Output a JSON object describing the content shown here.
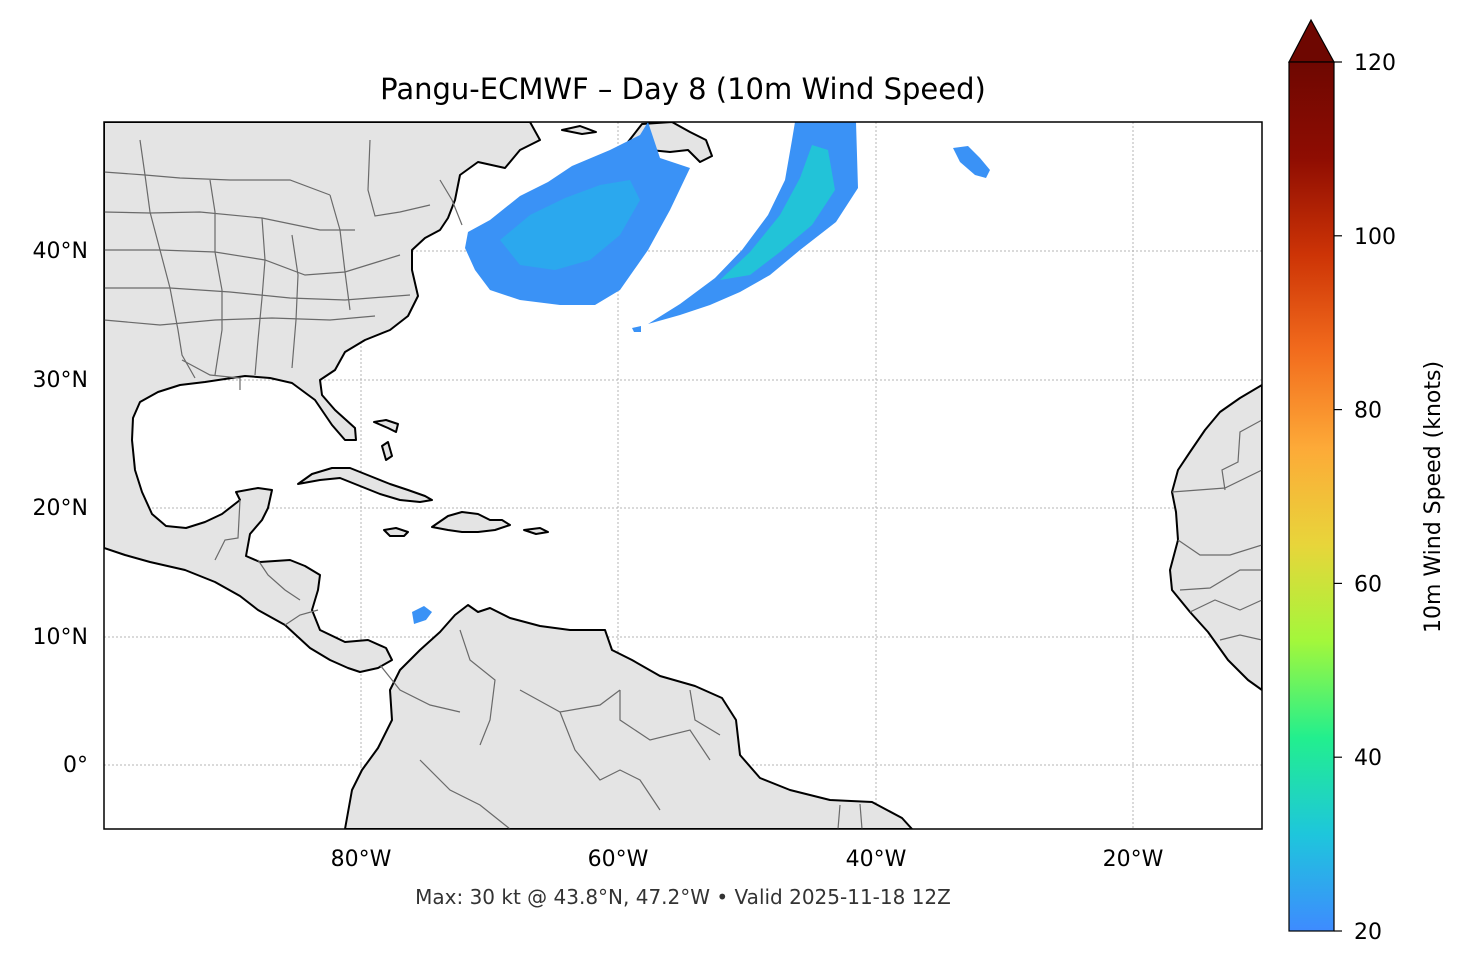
{
  "figure": {
    "title": "Pangu-ECMWF – Day 8 (10m Wind Speed)",
    "caption": "Max: 30 kt @ 43.8°N, 47.2°W • Valid 2025-11-18 12Z"
  },
  "map": {
    "lat_labels": [
      "40°N",
      "30°N",
      "20°N",
      "10°N",
      "0°"
    ],
    "lon_labels": [
      "80°W",
      "60°W",
      "40°W",
      "20°W"
    ],
    "gridlines": true,
    "land_color": "#e4e4e4",
    "coastline_color": "#000000",
    "border_color": "#6a6a6a"
  },
  "colorbar": {
    "label": "10m Wind Speed (knots)",
    "ticks": [
      "20",
      "40",
      "60",
      "80",
      "100",
      "120"
    ],
    "min": 20,
    "max": 120,
    "extend": "max",
    "colors": [
      "#3e8bff",
      "#1ec6dc",
      "#22ef8e",
      "#a3f73b",
      "#e8d53a",
      "#fdaa38",
      "#f26c1d",
      "#cd3406",
      "#8f0d02",
      "#6e0701"
    ]
  },
  "chart_data": {
    "type": "heatmap",
    "title": "Pangu-ECMWF – Day 8 (10m Wind Speed)",
    "xlabel": "",
    "ylabel": "",
    "lon_range": [
      -100,
      -10
    ],
    "lat_range": [
      -5,
      50
    ],
    "colorbar_label": "10m Wind Speed (knots)",
    "colorbar_range": [
      20,
      120
    ],
    "wind_regions": [
      {
        "lat": 41,
        "lon": -65,
        "value": 26
      },
      {
        "lat": 43.8,
        "lon": -47.2,
        "value": 30
      },
      {
        "lat": 38,
        "lon": -52,
        "value": 24
      },
      {
        "lat": 47,
        "lon": -33,
        "value": 22
      },
      {
        "lat": 11.5,
        "lon": -74.5,
        "value": 21
      }
    ],
    "max_value": 30,
    "max_location": {
      "lat": 43.8,
      "lon": -47.2
    }
  }
}
